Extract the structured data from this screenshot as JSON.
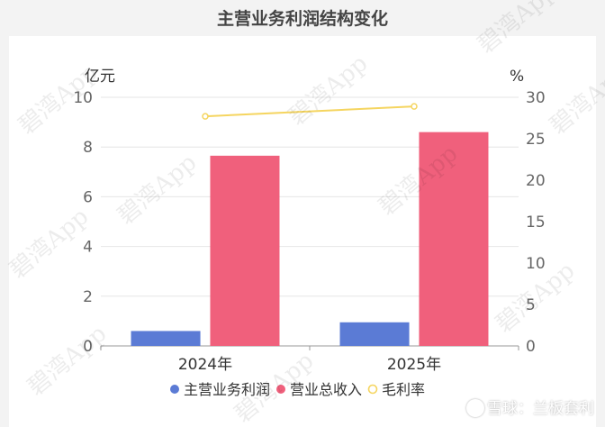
{
  "chart_data": {
    "type": "bar",
    "title": "主营业务利润结构变化",
    "categories": [
      "2024年",
      "2025年"
    ],
    "left_axis": {
      "unit": "亿元",
      "min": 0,
      "max": 10,
      "ticks": [
        0,
        2,
        4,
        6,
        8,
        10
      ]
    },
    "right_axis": {
      "unit": "%",
      "min": 0,
      "max": 30,
      "ticks": [
        0,
        5,
        10,
        15,
        20,
        25,
        30
      ]
    },
    "series": [
      {
        "name": "主营业务利润",
        "type": "bar",
        "axis": "left",
        "color": "#5b7bd5",
        "values": [
          0.6,
          0.95
        ]
      },
      {
        "name": "营业总收入",
        "type": "bar",
        "axis": "left",
        "color": "#f0607c",
        "values": [
          7.65,
          8.6
        ]
      },
      {
        "name": "毛利率",
        "type": "line",
        "axis": "right",
        "color": "#f5d560",
        "values": [
          27.7,
          28.9
        ]
      }
    ],
    "grid": true,
    "legend_position": "bottom"
  },
  "watermark": "碧湾App",
  "footer": {
    "text": "雪球：兰板套利",
    "icon": "snowball-logo-icon"
  }
}
